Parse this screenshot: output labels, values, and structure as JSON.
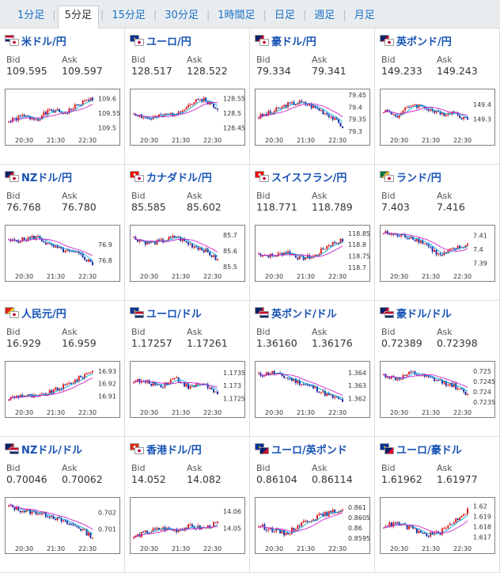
{
  "tabs": [
    {
      "label": "1分足",
      "active": false
    },
    {
      "label": "5分足",
      "active": true
    },
    {
      "label": "15分足",
      "active": false
    },
    {
      "label": "30分足",
      "active": false
    },
    {
      "label": "1時間足",
      "active": false
    },
    {
      "label": "日足",
      "active": false
    },
    {
      "label": "週足",
      "active": false
    },
    {
      "label": "月足",
      "active": false
    }
  ],
  "labels": {
    "bid": "Bid",
    "ask": "Ask"
  },
  "time_ticks": [
    "20:30",
    "21:30",
    "22:30"
  ],
  "colors": {
    "up": "#e02020",
    "down": "#1a2fa0",
    "ma1": "#00aadd",
    "ma2": "#cc22cc",
    "pair_text": "#1652b5"
  },
  "pairs": [
    {
      "name": "米ドル/円",
      "flags": [
        "us",
        "jp"
      ],
      "bid": "109.595",
      "ask": "109.597",
      "y_ticks": [
        "109.6",
        "109.55",
        "109.5"
      ],
      "y_range": [
        109.48,
        109.62
      ],
      "trend": [
        109.52,
        109.54,
        109.53,
        109.56,
        109.55,
        109.58,
        109.6
      ],
      "seed": 1
    },
    {
      "name": "ユーロ/円",
      "flags": [
        "eu",
        "jp"
      ],
      "bid": "128.517",
      "ask": "128.522",
      "y_ticks": [
        "128.55",
        "128.5",
        "128.45"
      ],
      "y_range": [
        128.43,
        128.57
      ],
      "trend": [
        128.5,
        128.48,
        128.49,
        128.5,
        128.53,
        128.55,
        128.51
      ],
      "seed": 2
    },
    {
      "name": "豪ドル/円",
      "flags": [
        "au",
        "jp"
      ],
      "bid": "79.334",
      "ask": "79.341",
      "y_ticks": [
        "79.45",
        "79.4",
        "79.35",
        "79.3"
      ],
      "y_range": [
        79.29,
        79.46
      ],
      "trend": [
        79.36,
        79.38,
        79.41,
        79.42,
        79.4,
        79.37,
        79.32
      ],
      "seed": 3
    },
    {
      "name": "英ポンド/円",
      "flags": [
        "gb",
        "jp"
      ],
      "bid": "149.233",
      "ask": "149.243",
      "y_ticks": [
        "149.4",
        "149.3"
      ],
      "y_range": [
        149.2,
        149.48
      ],
      "trend": [
        149.36,
        149.32,
        149.4,
        149.38,
        149.33,
        149.35,
        149.29
      ],
      "seed": 4
    },
    {
      "name": "NZドル/円",
      "flags": [
        "nz",
        "jp"
      ],
      "bid": "76.768",
      "ask": "76.780",
      "y_ticks": [
        "76.9",
        "76.8"
      ],
      "y_range": [
        76.74,
        77.0
      ],
      "trend": [
        76.92,
        76.93,
        76.95,
        76.89,
        76.86,
        76.84,
        76.78
      ],
      "seed": 5
    },
    {
      "name": "カナダドル/円",
      "flags": [
        "ca",
        "jp"
      ],
      "bid": "85.585",
      "ask": "85.602",
      "y_ticks": [
        "85.7",
        "85.6",
        "85.5"
      ],
      "y_range": [
        85.48,
        85.74
      ],
      "trend": [
        85.68,
        85.65,
        85.66,
        85.69,
        85.64,
        85.61,
        85.54
      ],
      "seed": 6
    },
    {
      "name": "スイスフラン/円",
      "flags": [
        "ch",
        "jp"
      ],
      "bid": "118.771",
      "ask": "118.789",
      "y_ticks": [
        "118.85",
        "118.8",
        "118.75",
        "118.7"
      ],
      "y_range": [
        118.69,
        118.87
      ],
      "trend": [
        118.76,
        118.75,
        118.77,
        118.74,
        118.75,
        118.8,
        118.82
      ],
      "seed": 7
    },
    {
      "name": "ランド/円",
      "flags": [
        "za",
        "jp"
      ],
      "bid": "7.403",
      "ask": "7.416",
      "y_ticks": [
        "7.41",
        "7.4",
        "7.39"
      ],
      "y_range": [
        7.385,
        7.415
      ],
      "trend": [
        7.412,
        7.41,
        7.409,
        7.404,
        7.395,
        7.4,
        7.403
      ],
      "seed": 8
    },
    {
      "name": "人民元/円",
      "flags": [
        "cn",
        "jp"
      ],
      "bid": "16.929",
      "ask": "16.959",
      "y_ticks": [
        "16.93",
        "16.92",
        "16.91"
      ],
      "y_range": [
        16.902,
        16.935
      ],
      "trend": [
        16.908,
        16.911,
        16.909,
        16.913,
        16.918,
        16.924,
        16.931
      ],
      "seed": 9
    },
    {
      "name": "ユーロ/ドル",
      "flags": [
        "eu",
        "us"
      ],
      "bid": "1.17257",
      "ask": "1.17261",
      "y_ticks": [
        "1.1735",
        "1.173",
        "1.1725"
      ],
      "y_range": [
        1.1722,
        1.1738
      ],
      "trend": [
        1.1732,
        1.1731,
        1.173,
        1.1733,
        1.1729,
        1.1731,
        1.1726
      ],
      "seed": 10
    },
    {
      "name": "英ポンド/ドル",
      "flags": [
        "gb",
        "us"
      ],
      "bid": "1.36160",
      "ask": "1.36176",
      "y_ticks": [
        "1.364",
        "1.363",
        "1.362"
      ],
      "y_range": [
        1.3614,
        1.3646
      ],
      "trend": [
        1.3638,
        1.364,
        1.3636,
        1.3632,
        1.3628,
        1.3622,
        1.3618
      ],
      "seed": 11
    },
    {
      "name": "豪ドル/ドル",
      "flags": [
        "au",
        "us"
      ],
      "bid": "0.72389",
      "ask": "0.72398",
      "y_ticks": [
        "0.725",
        "0.7245",
        "0.724",
        "0.7235"
      ],
      "y_range": [
        0.7233,
        0.7253
      ],
      "trend": [
        0.7248,
        0.7246,
        0.7249,
        0.7247,
        0.7245,
        0.7243,
        0.7238
      ],
      "seed": 12
    },
    {
      "name": "NZドル/ドル",
      "flags": [
        "nz",
        "us"
      ],
      "bid": "0.70046",
      "ask": "0.70062",
      "y_ticks": [
        "0.702",
        "0.701"
      ],
      "y_range": [
        0.7002,
        0.7027
      ],
      "trend": [
        0.7024,
        0.7021,
        0.702,
        0.7018,
        0.7014,
        0.7011,
        0.7005
      ],
      "seed": 13
    },
    {
      "name": "香港ドル/円",
      "flags": [
        "hk",
        "jp"
      ],
      "bid": "14.052",
      "ask": "14.082",
      "y_ticks": [
        "14.06",
        "14.05"
      ],
      "y_range": [
        14.042,
        14.066
      ],
      "trend": [
        14.045,
        14.048,
        14.05,
        14.049,
        14.051,
        14.05,
        14.053
      ],
      "seed": 14
    },
    {
      "name": "ユーロ/英ポンド",
      "flags": [
        "eu",
        "gb"
      ],
      "bid": "0.86104",
      "ask": "0.86114",
      "y_ticks": [
        "0.861",
        "0.8605",
        "0.86",
        "0.8595"
      ],
      "y_range": [
        0.8593,
        0.8613
      ],
      "trend": [
        0.8601,
        0.8599,
        0.8597,
        0.8602,
        0.8605,
        0.8607,
        0.8609
      ],
      "seed": 15
    },
    {
      "name": "ユーロ/豪ドル",
      "flags": [
        "eu",
        "au"
      ],
      "bid": "1.61962",
      "ask": "1.61977",
      "y_ticks": [
        "1.62",
        "1.619",
        "1.618",
        "1.617"
      ],
      "y_range": [
        1.6165,
        1.6205
      ],
      "trend": [
        1.6181,
        1.6183,
        1.6178,
        1.6172,
        1.6174,
        1.6185,
        1.6196
      ],
      "seed": 16
    }
  ],
  "flag_colors": {
    "us": [
      "#bf0a30",
      "#ffffff",
      "#002868"
    ],
    "jp": [
      "#ffffff",
      "#bc002d"
    ],
    "eu": [
      "#003399",
      "#ffcc00"
    ],
    "au": [
      "#012169",
      "#e4002b"
    ],
    "gb": [
      "#012169",
      "#c8102e"
    ],
    "nz": [
      "#012169",
      "#cc142b"
    ],
    "ca": [
      "#ff0000",
      "#ffffff"
    ],
    "ch": [
      "#ff0000",
      "#ffffff"
    ],
    "za": [
      "#007749",
      "#ffb81c"
    ],
    "cn": [
      "#de2910",
      "#ffde00"
    ],
    "hk": [
      "#de2910",
      "#ffffff"
    ]
  }
}
